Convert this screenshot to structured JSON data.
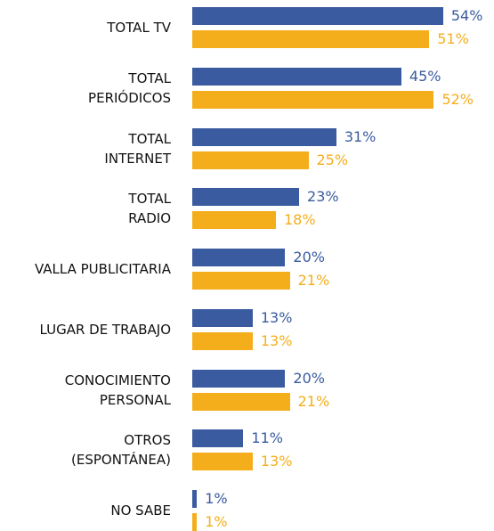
{
  "chart_data": {
    "type": "bar",
    "orientation": "horizontal",
    "categories": [
      "TOTAL TV",
      "TOTAL\nPERIÓDICOS",
      "TOTAL\nINTERNET",
      "TOTAL\nRADIO",
      "VALLA PUBLICITARIA",
      "LUGAR DE TRABAJO",
      "CONOCIMIENTO\nPERSONAL",
      "OTROS\n(ESPONTÁNEA)",
      "NO SABE"
    ],
    "series": [
      {
        "color": "#3a5ba0",
        "values": [
          54,
          45,
          31,
          23,
          20,
          13,
          20,
          11,
          1
        ],
        "value_labels": [
          "54%",
          "45%",
          "31%",
          "23%",
          "20%",
          "13%",
          "20%",
          "11%",
          "1%"
        ]
      },
      {
        "color": "#f5ae1b",
        "values": [
          51,
          52,
          25,
          18,
          21,
          13,
          21,
          13,
          1
        ],
        "value_labels": [
          "51%",
          "52%",
          "25%",
          "18%",
          "21%",
          "13%",
          "21%",
          "13%",
          "1%"
        ]
      }
    ]
  }
}
